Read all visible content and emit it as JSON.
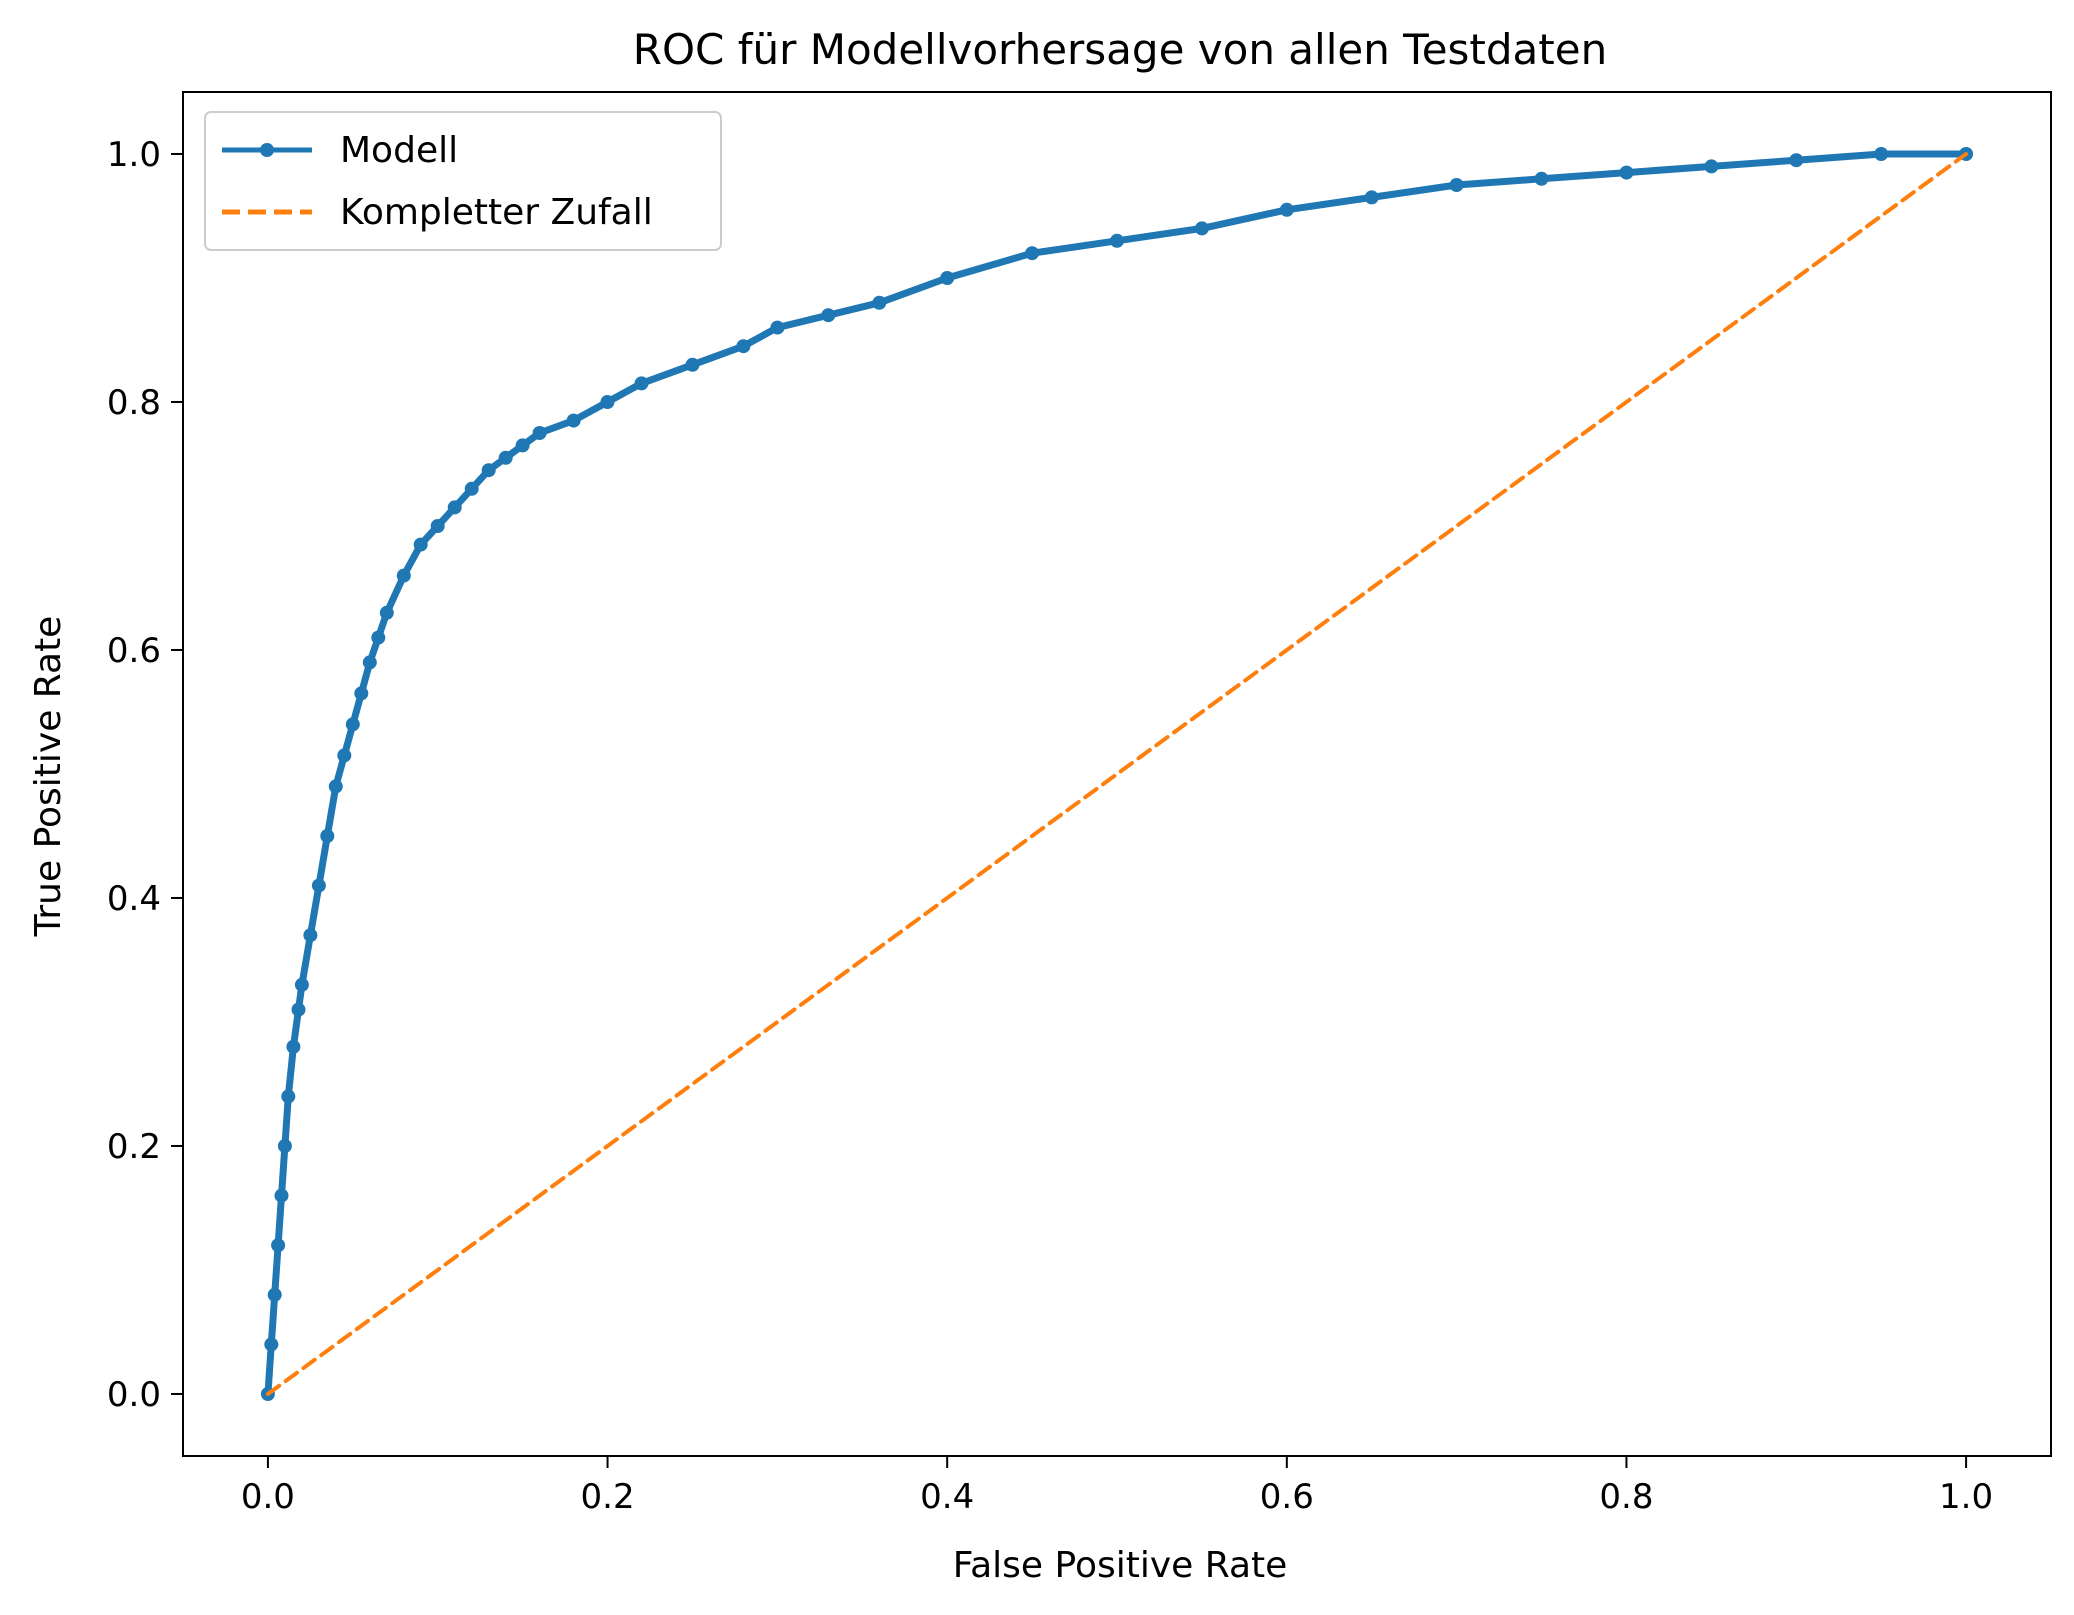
{
  "chart_data": {
    "type": "line",
    "title": "ROC für Modellvorhersage von allen Testdaten",
    "xlabel": "False Positive Rate",
    "ylabel": "True Positive Rate",
    "xlim": [
      -0.05,
      1.05
    ],
    "ylim": [
      -0.05,
      1.05
    ],
    "xticks": [
      "0.0",
      "0.2",
      "0.4",
      "0.6",
      "0.8",
      "1.0"
    ],
    "yticks": [
      "0.0",
      "0.2",
      "0.4",
      "0.6",
      "0.8",
      "1.0"
    ],
    "grid": false,
    "legend_position": "top-left",
    "series": [
      {
        "name": "Modell",
        "color": "#1f77b4",
        "style": "solid",
        "markers": true,
        "x": [
          0.0,
          0.002,
          0.004,
          0.006,
          0.008,
          0.01,
          0.012,
          0.015,
          0.018,
          0.02,
          0.025,
          0.03,
          0.035,
          0.04,
          0.045,
          0.05,
          0.055,
          0.06,
          0.065,
          0.07,
          0.08,
          0.09,
          0.1,
          0.11,
          0.12,
          0.13,
          0.14,
          0.15,
          0.16,
          0.18,
          0.2,
          0.22,
          0.25,
          0.28,
          0.3,
          0.33,
          0.36,
          0.4,
          0.45,
          0.5,
          0.55,
          0.6,
          0.65,
          0.7,
          0.75,
          0.8,
          0.85,
          0.9,
          0.95,
          1.0
        ],
        "y": [
          0.0,
          0.04,
          0.08,
          0.12,
          0.16,
          0.2,
          0.24,
          0.28,
          0.31,
          0.33,
          0.37,
          0.41,
          0.45,
          0.49,
          0.515,
          0.54,
          0.565,
          0.59,
          0.61,
          0.63,
          0.66,
          0.685,
          0.7,
          0.715,
          0.73,
          0.745,
          0.755,
          0.765,
          0.775,
          0.785,
          0.8,
          0.815,
          0.83,
          0.845,
          0.86,
          0.87,
          0.88,
          0.9,
          0.92,
          0.93,
          0.94,
          0.955,
          0.965,
          0.975,
          0.98,
          0.985,
          0.99,
          0.995,
          1.0,
          1.0
        ]
      },
      {
        "name": "Kompletter Zufall",
        "color": "#ff7f0e",
        "style": "dashed",
        "markers": false,
        "x": [
          0.0,
          1.0
        ],
        "y": [
          0.0,
          1.0
        ]
      }
    ]
  }
}
